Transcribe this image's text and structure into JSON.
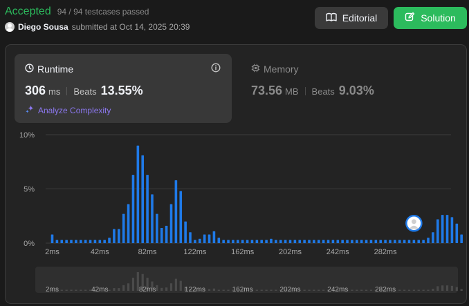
{
  "header": {
    "status": "Accepted",
    "testcases": "94 / 94 testcases passed",
    "user_name": "Diego Sousa",
    "submitted_text": "submitted at Oct 14, 2025 20:39",
    "editorial_label": "Editorial",
    "solution_label": "Solution"
  },
  "runtime": {
    "title": "Runtime",
    "value": "306",
    "unit": "ms",
    "beats_label": "Beats",
    "beats_value": "13.55%",
    "analyze_label": "Analyze Complexity"
  },
  "memory": {
    "title": "Memory",
    "value": "73.56",
    "unit": "MB",
    "beats_label": "Beats",
    "beats_value": "9.03%"
  },
  "colors": {
    "accepted": "#2cbb5d",
    "bar": "#1f7ae8",
    "analyze": "#8c78f0"
  },
  "chart_data": {
    "type": "bar",
    "ylim": [
      0,
      10
    ],
    "yticks": [
      "10%",
      "5%",
      "0%"
    ],
    "yticks_values": [
      10,
      5,
      0
    ],
    "xticks": [
      "2ms",
      "42ms",
      "82ms",
      "122ms",
      "162ms",
      "202ms",
      "242ms",
      "282ms"
    ],
    "xticks_values": [
      2,
      42,
      82,
      122,
      162,
      202,
      242,
      282
    ],
    "bar_x_start": 2,
    "bar_x_step": 4,
    "values": [
      0.8,
      0.3,
      0.3,
      0.3,
      0.3,
      0.3,
      0.3,
      0.3,
      0.3,
      0.3,
      0.3,
      0.3,
      0.5,
      1.3,
      1.3,
      2.7,
      3.6,
      6.3,
      9.0,
      8.1,
      6.3,
      4.5,
      2.7,
      1.4,
      1.6,
      3.6,
      5.8,
      4.8,
      2.0,
      1.0,
      0.3,
      0.4,
      0.8,
      0.8,
      1.1,
      0.5,
      0.3,
      0.3,
      0.3,
      0.3,
      0.3,
      0.3,
      0.3,
      0.3,
      0.3,
      0.3,
      0.4,
      0.3,
      0.3,
      0.3,
      0.3,
      0.3,
      0.3,
      0.3,
      0.3,
      0.3,
      0.3,
      0.3,
      0.3,
      0.3,
      0.3,
      0.3,
      0.3,
      0.3,
      0.3,
      0.3,
      0.3,
      0.3,
      0.3,
      0.3,
      0.3,
      0.3,
      0.3,
      0.3,
      0.3,
      0.3,
      0.3,
      0.3,
      0.3,
      0.5,
      1.0,
      2.2,
      2.6,
      2.6,
      2.4,
      1.8,
      0.8
    ],
    "highlight_value": 306,
    "highlight_marker": "user-avatar",
    "grid": true,
    "overview_brush": true
  }
}
